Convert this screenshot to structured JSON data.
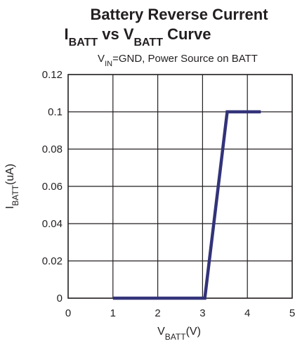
{
  "chart_data": {
    "type": "line",
    "title": [
      "Battery Reverse Current",
      [
        "I",
        "BATT",
        " vs V",
        "BATT",
        " Curve"
      ]
    ],
    "subtitle": [
      "V",
      "IN",
      "=GND, Power Source on BATT"
    ],
    "xlabel": [
      "V",
      "BATT",
      "(V)"
    ],
    "ylabel": [
      "I",
      "BATT",
      "(uA)"
    ],
    "xlim": [
      0,
      5
    ],
    "xticks": [
      0,
      1,
      2,
      3,
      4,
      5
    ],
    "ylim": [
      0,
      0.12
    ],
    "yticks": [
      0,
      0.02,
      0.04,
      0.06,
      0.08,
      0.1,
      0.12
    ],
    "grid": true,
    "series": [
      {
        "color": "#33337a",
        "x": [
          1,
          3.05,
          3.55,
          4.3
        ],
        "values": [
          0,
          0,
          0.1,
          0.1
        ]
      }
    ]
  }
}
